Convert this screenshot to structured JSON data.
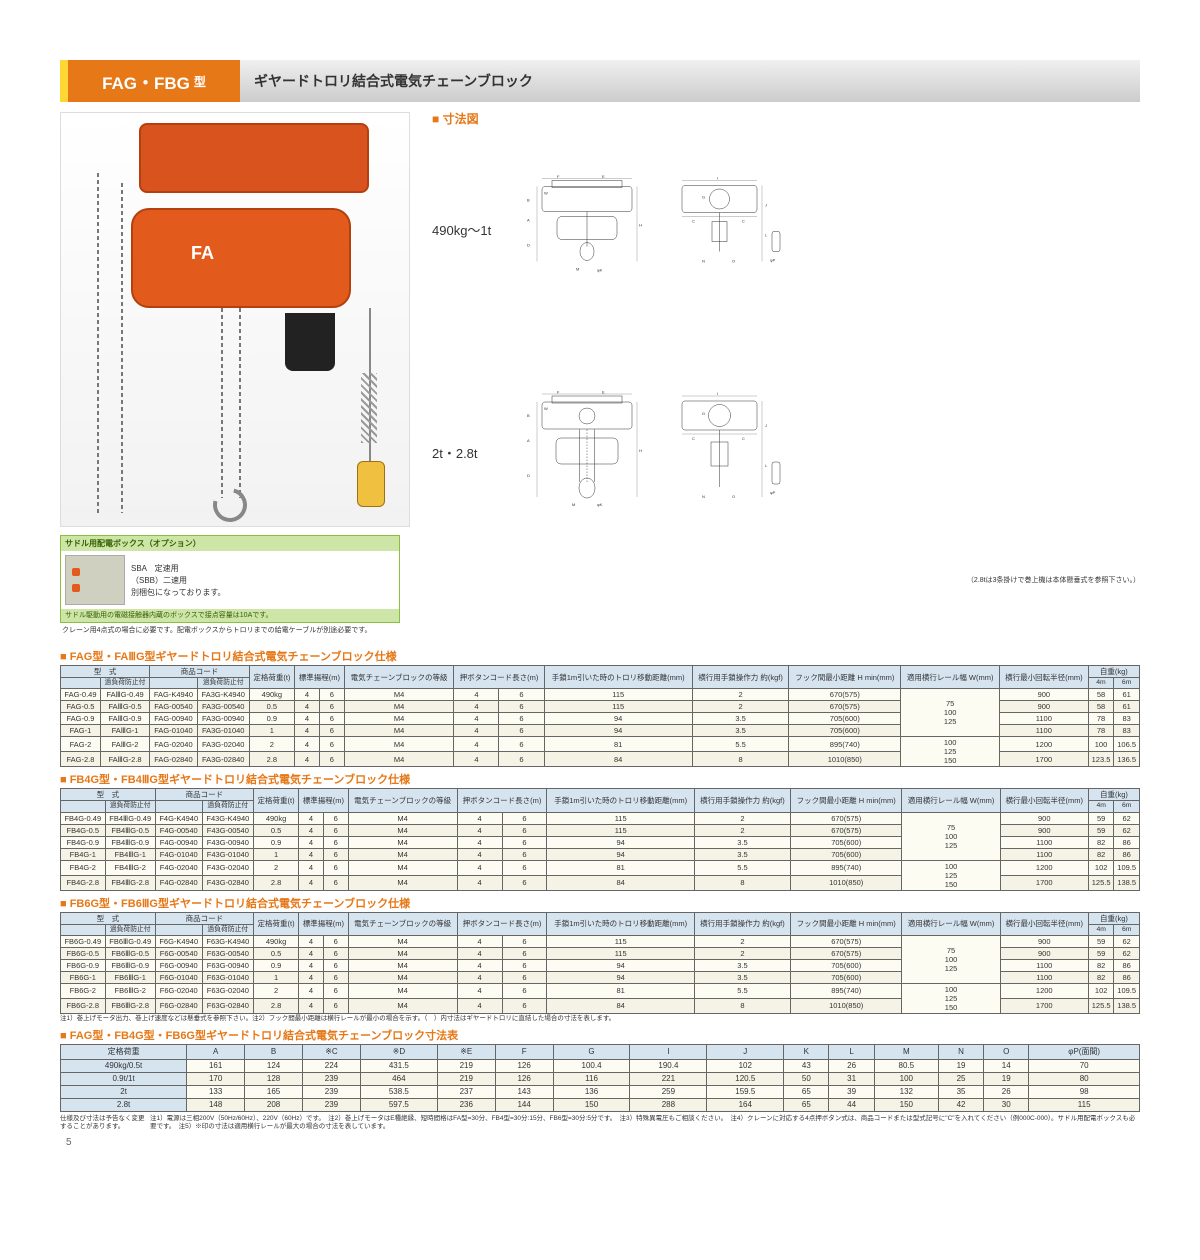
{
  "header": {
    "model": "FAG・FBG",
    "suffix": "型",
    "title": "ギヤードトロリ結合式電気チェーンブロック"
  },
  "diagram": {
    "heading": "寸法図",
    "range1": "490kg～1t",
    "range2": "2t・2.8t",
    "labels": [
      "A",
      "B",
      "C",
      "D",
      "E",
      "F",
      "G",
      "H",
      "I",
      "J",
      "K",
      "L",
      "M",
      "N",
      "O",
      "W",
      "φK",
      "φP"
    ],
    "note": "（2.8tは3条掛けで巻上機は本体懸垂式を参照下さい。）"
  },
  "option": {
    "title": "サドル用配電ボックス（オプション）",
    "lines": [
      "SBA　定速用",
      "（SBB）二速用",
      "別梱包になっております。"
    ],
    "boxnote": "サドル駆動用の電磁接触器内蔵のボックスで接点容量は10Aです。",
    "foot": "クレーン用4点式の場合に必要です。配電ボックスからトロリまでの給電ケーブルが別途必要です。"
  },
  "spec_headers": {
    "model": "型　式",
    "code": "商品コード",
    "sub_no": "過負荷防止付",
    "sub_yes": "過負荷防止付",
    "load": "定格荷重(t)",
    "lift": "標準揚程(m)",
    "grade": "電気チェーンブロックの等級",
    "cord": "押ボタンコード長さ(m)",
    "travel": "手鎖1m引いた時のトロリ移動距離(mm)",
    "force": "横行用手鎖操作力 約(kgf)",
    "hmin": "フック間最小距離 H min(mm)",
    "rail": "適用横行レール幅 W(mm)",
    "radius": "横行最小回転半径(mm)",
    "weight": "自重(kg)",
    "w4": "4m",
    "w6": "6m"
  },
  "sections": [
    {
      "title": "FAG型・FAⅢG型ギヤードトロリ結合式電気チェーンブロック仕様",
      "rail_groups": [
        "75\n100\n125",
        "100\n125\n150"
      ],
      "rows": [
        [
          "FAG-0.49",
          "FAⅢG-0.49",
          "FAG-K4940",
          "FA3G-K4940",
          "490kg",
          "4",
          "6",
          "M4",
          "4",
          "6",
          "115",
          "2",
          "670(575)",
          "",
          "900",
          "58",
          "61"
        ],
        [
          "FAG-0.5",
          "FAⅢG-0.5",
          "FAG-00540",
          "FA3G-00540",
          "0.5",
          "4",
          "6",
          "M4",
          "4",
          "6",
          "115",
          "2",
          "670(575)",
          "",
          "900",
          "58",
          "61"
        ],
        [
          "FAG-0.9",
          "FAⅢG-0.9",
          "FAG-00940",
          "FA3G-00940",
          "0.9",
          "4",
          "6",
          "M4",
          "4",
          "6",
          "94",
          "3.5",
          "705(600)",
          "",
          "1100",
          "78",
          "83"
        ],
        [
          "FAG-1",
          "FAⅢG-1",
          "FAG-01040",
          "FA3G-01040",
          "1",
          "4",
          "6",
          "M4",
          "4",
          "6",
          "94",
          "3.5",
          "705(600)",
          "",
          "1100",
          "78",
          "83"
        ],
        [
          "FAG-2",
          "FAⅢG-2",
          "FAG-02040",
          "FA3G-02040",
          "2",
          "4",
          "6",
          "M4",
          "4",
          "6",
          "81",
          "5.5",
          "895(740)",
          "",
          "1200",
          "100",
          "106.5"
        ],
        [
          "FAG-2.8",
          "FAⅢG-2.8",
          "FAG-02840",
          "FA3G-02840",
          "2.8",
          "4",
          "6",
          "M4",
          "4",
          "6",
          "84",
          "8",
          "1010(850)",
          "",
          "1700",
          "123.5",
          "136.5"
        ]
      ]
    },
    {
      "title": "FB4G型・FB4ⅢG型ギヤードトロリ結合式電気チェーンブロック仕様",
      "rail_groups": [
        "75\n100\n125",
        "100\n125\n150"
      ],
      "rows": [
        [
          "FB4G-0.49",
          "FB4ⅢG-0.49",
          "F4G-K4940",
          "F43G-K4940",
          "490kg",
          "4",
          "6",
          "M4",
          "4",
          "6",
          "115",
          "2",
          "670(575)",
          "",
          "900",
          "59",
          "62"
        ],
        [
          "FB4G-0.5",
          "FB4ⅢG-0.5",
          "F4G-00540",
          "F43G-00540",
          "0.5",
          "4",
          "6",
          "M4",
          "4",
          "6",
          "115",
          "2",
          "670(575)",
          "",
          "900",
          "59",
          "62"
        ],
        [
          "FB4G-0.9",
          "FB4ⅢG-0.9",
          "F4G-00940",
          "F43G-00940",
          "0.9",
          "4",
          "6",
          "M4",
          "4",
          "6",
          "94",
          "3.5",
          "705(600)",
          "",
          "1100",
          "82",
          "86"
        ],
        [
          "FB4G-1",
          "FB4ⅢG-1",
          "F4G-01040",
          "F43G-01040",
          "1",
          "4",
          "6",
          "M4",
          "4",
          "6",
          "94",
          "3.5",
          "705(600)",
          "",
          "1100",
          "82",
          "86"
        ],
        [
          "FB4G-2",
          "FB4ⅢG-2",
          "F4G-02040",
          "F43G-02040",
          "2",
          "4",
          "6",
          "M4",
          "4",
          "6",
          "81",
          "5.5",
          "895(740)",
          "",
          "1200",
          "102",
          "109.5"
        ],
        [
          "FB4G-2.8",
          "FB4ⅢG-2.8",
          "F4G-02840",
          "F43G-02840",
          "2.8",
          "4",
          "6",
          "M4",
          "4",
          "6",
          "84",
          "8",
          "1010(850)",
          "",
          "1700",
          "125.5",
          "138.5"
        ]
      ]
    },
    {
      "title": "FB6G型・FB6ⅢG型ギヤードトロリ結合式電気チェーンブロック仕様",
      "rail_groups": [
        "75\n100\n125",
        "100\n125\n150"
      ],
      "rows": [
        [
          "FB6G-0.49",
          "FB6ⅢG-0.49",
          "F6G-K4940",
          "F63G-K4940",
          "490kg",
          "4",
          "6",
          "M4",
          "4",
          "6",
          "115",
          "2",
          "670(575)",
          "",
          "900",
          "59",
          "62"
        ],
        [
          "FB6G-0.5",
          "FB6ⅢG-0.5",
          "F6G-00540",
          "F63G-00540",
          "0.5",
          "4",
          "6",
          "M4",
          "4",
          "6",
          "115",
          "2",
          "670(575)",
          "",
          "900",
          "59",
          "62"
        ],
        [
          "FB6G-0.9",
          "FB6ⅢG-0.9",
          "F6G-00940",
          "F63G-00940",
          "0.9",
          "4",
          "6",
          "M4",
          "4",
          "6",
          "94",
          "3.5",
          "705(600)",
          "",
          "1100",
          "82",
          "86"
        ],
        [
          "FB6G-1",
          "FB6ⅢG-1",
          "F6G-01040",
          "F63G-01040",
          "1",
          "4",
          "6",
          "M4",
          "4",
          "6",
          "94",
          "3.5",
          "705(600)",
          "",
          "1100",
          "82",
          "86"
        ],
        [
          "FB6G-2",
          "FB6ⅢG-2",
          "F6G-02040",
          "F63G-02040",
          "2",
          "4",
          "6",
          "M4",
          "4",
          "6",
          "81",
          "5.5",
          "895(740)",
          "",
          "1200",
          "102",
          "109.5"
        ],
        [
          "FB6G-2.8",
          "FB6ⅢG-2.8",
          "F6G-02840",
          "F63G-02840",
          "2.8",
          "4",
          "6",
          "M4",
          "4",
          "6",
          "84",
          "8",
          "1010(850)",
          "",
          "1700",
          "125.5",
          "138.5"
        ]
      ]
    }
  ],
  "spec_note": "注1）巻上げモータ出力、巻上げ速度などは懸垂式を参照下さい。注2）フック間最小距離は横行レールが最小の場合を示す。（　）内寸法はギヤードトロリに直結した場合の寸法を表します。",
  "dim": {
    "title": "FAG型・FB4G型・FB6G型ギヤードトロリ結合式電気チェーンブロック寸法表",
    "cols": [
      "定格荷重",
      "A",
      "B",
      "※C",
      "※D",
      "※E",
      "F",
      "G",
      "I",
      "J",
      "K",
      "L",
      "M",
      "N",
      "O",
      "φP(面間)"
    ],
    "rows": [
      [
        "490kg/0.5t",
        "161",
        "124",
        "224",
        "431.5",
        "219",
        "126",
        "100.4",
        "190.4",
        "102",
        "43",
        "26",
        "80.5",
        "19",
        "14",
        "70"
      ],
      [
        "0.9t/1t",
        "170",
        "128",
        "239",
        "464",
        "219",
        "126",
        "116",
        "221",
        "120.5",
        "50",
        "31",
        "100",
        "25",
        "19",
        "80"
      ],
      [
        "2t",
        "133",
        "165",
        "239",
        "538.5",
        "237",
        "143",
        "136",
        "259",
        "159.5",
        "65",
        "39",
        "132",
        "35",
        "26",
        "98"
      ],
      [
        "2.8t",
        "148",
        "208",
        "239",
        "597.5",
        "236",
        "144",
        "150",
        "288",
        "164",
        "65",
        "44",
        "150",
        "42",
        "30",
        "115"
      ]
    ]
  },
  "footer": {
    "left": "仕様及び寸法は予告なく変更することがあります。",
    "right": "注1）電源は三相200V（50Hz/60Hz）、220V（60Hz）です。　注2）巻上げモータはE種絶縁、短時間格はFA型=30分、FB4型=30分:15分、FB6型=30分:5分です。　注3）特殊異電圧もご相談ください。　注4）クレーンに対応する4点押ボタン式は、商品コードまたは型式記号に\"C\"を入れてください（例000C-000）。サドル用配電ボックスも必要です。　注5）※印の寸法は適用横行レールが最大の場合の寸法を表しています。"
  },
  "page": "5",
  "colors": {
    "accent": "#e67817",
    "header_bg": "#d6e4f0",
    "row_alt": "#f5f3e6",
    "row": "#fdfcf3",
    "green": "#cde5a7"
  }
}
